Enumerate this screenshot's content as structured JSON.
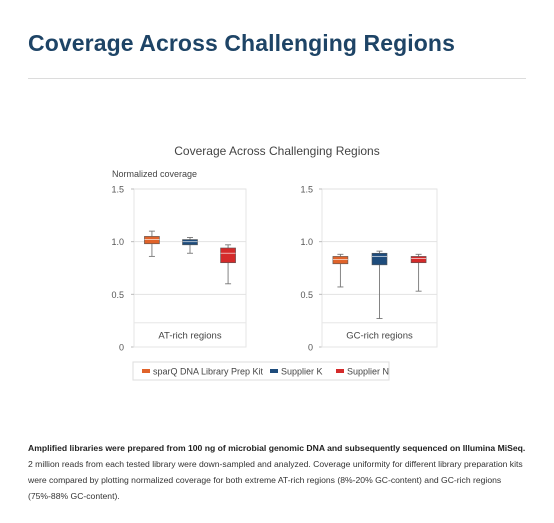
{
  "page": {
    "heading": "Coverage Across Challenging Regions",
    "caption_bold": "Amplified libraries were prepared from 100 ng of microbial genomic DNA and subsequently sequenced on Illumina MiSeq.",
    "caption_rest": " 2 million reads from each tested library were down-sampled and analyzed. Coverage uniformity for different library preparation kits were compared by plotting normalized coverage for both extreme AT-rich regions (8%-20% GC-content) and GC-rich regions (75%-88% GC-content)."
  },
  "chart_data": {
    "type": "box",
    "title": "Coverage Across Challenging Regions",
    "ylabel": "Normalized coverage",
    "ylim": [
      0,
      1.5
    ],
    "yticks": [
      "0",
      "0.5",
      "1.0",
      "1.5"
    ],
    "grid": true,
    "legend_position": "bottom",
    "series": [
      {
        "name": "sparQ DNA Library Prep Kit",
        "color": "#e0632a"
      },
      {
        "name": "Supplier K",
        "color": "#1e4c7c"
      },
      {
        "name": "Supplier N",
        "color": "#d42a2a"
      }
    ],
    "panels": [
      {
        "label": "AT-rich regions",
        "boxes": [
          {
            "series": 0,
            "min": 0.86,
            "q1": 0.98,
            "median": 1.02,
            "q3": 1.05,
            "max": 1.1
          },
          {
            "series": 1,
            "min": 0.89,
            "q1": 0.97,
            "median": 1.0,
            "q3": 1.02,
            "max": 1.04
          },
          {
            "series": 2,
            "min": 0.6,
            "q1": 0.8,
            "median": 0.89,
            "q3": 0.94,
            "max": 0.97
          }
        ]
      },
      {
        "label": "GC-rich regions",
        "boxes": [
          {
            "series": 0,
            "min": 0.57,
            "q1": 0.79,
            "median": 0.83,
            "q3": 0.86,
            "max": 0.88
          },
          {
            "series": 1,
            "min": 0.27,
            "q1": 0.78,
            "median": 0.86,
            "q3": 0.89,
            "max": 0.91
          },
          {
            "series": 2,
            "min": 0.53,
            "q1": 0.8,
            "median": 0.84,
            "q3": 0.86,
            "max": 0.88
          }
        ]
      }
    ]
  }
}
